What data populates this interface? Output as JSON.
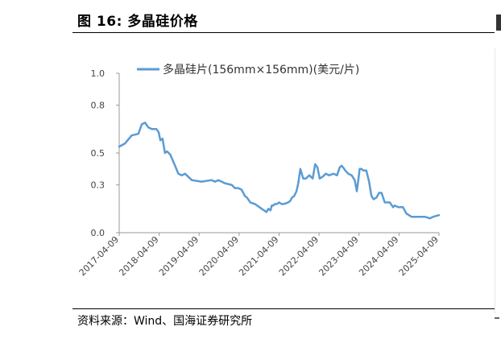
{
  "figure": {
    "title": "图 16:  多晶硅价格",
    "source": "资料来源：Wind、国海证券研究所"
  },
  "chart_data": {
    "type": "line",
    "title": "",
    "xlabel": "",
    "ylabel": "",
    "legend_position": "top",
    "ylim": [
      0,
      1.0
    ],
    "y_ticks": [
      0.0,
      0.3,
      0.5,
      0.8,
      1.0
    ],
    "y_tick_labels": [
      "0.0",
      "0.3",
      "0.5",
      "0.8",
      "1.0"
    ],
    "x_tick_labels": [
      "2017-04-09",
      "2018-04-09",
      "2019-04-09",
      "2020-04-09",
      "2021-04-09",
      "2022-04-09",
      "2023-04-09",
      "2024-04-09",
      "2025-04-09"
    ],
    "xlim": [
      "2017-04-09",
      "2025-04-09"
    ],
    "grid": false,
    "series": [
      {
        "name": "多晶硅片(156mm×156mm)(美元/片)",
        "color": "#5b9bd5",
        "x": [
          "2017-04-09",
          "2017-06-01",
          "2017-08-01",
          "2017-10-01",
          "2017-11-01",
          "2017-12-01",
          "2018-01-01",
          "2018-02-01",
          "2018-03-15",
          "2018-04-05",
          "2018-04-20",
          "2018-05-10",
          "2018-06-01",
          "2018-06-20",
          "2018-07-20",
          "2018-09-01",
          "2018-10-01",
          "2018-11-01",
          "2018-12-01",
          "2019-02-01",
          "2019-05-01",
          "2019-08-01",
          "2019-09-01",
          "2019-10-01",
          "2019-11-01",
          "2019-12-01",
          "2020-02-01",
          "2020-03-01",
          "2020-04-01",
          "2020-05-01",
          "2020-06-01",
          "2020-06-20",
          "2020-07-20",
          "2020-09-01",
          "2020-11-01",
          "2020-12-15",
          "2021-01-01",
          "2021-01-20",
          "2021-02-01",
          "2021-02-15",
          "2021-03-01",
          "2021-03-20",
          "2021-04-10",
          "2021-05-01",
          "2021-05-20",
          "2021-07-01",
          "2021-07-20",
          "2021-08-05",
          "2021-08-25",
          "2021-09-15",
          "2021-10-01",
          "2021-10-20",
          "2021-11-15",
          "2021-12-10",
          "2022-01-10",
          "2022-02-10",
          "2022-03-05",
          "2022-03-25",
          "2022-04-15",
          "2022-05-10",
          "2022-06-10",
          "2022-07-10",
          "2022-08-20",
          "2022-09-20",
          "2022-10-15",
          "2022-11-01",
          "2022-11-15",
          "2022-11-25",
          "2022-12-05",
          "2023-01-01",
          "2023-02-01",
          "2023-03-01",
          "2023-03-20",
          "2023-04-05",
          "2023-04-15",
          "2023-05-01",
          "2023-05-20",
          "2023-06-15",
          "2023-07-10",
          "2023-08-01",
          "2023-08-20",
          "2023-09-15",
          "2023-10-10",
          "2023-11-01",
          "2023-12-01",
          "2024-01-15",
          "2024-02-15",
          "2024-03-01",
          "2024-04-01",
          "2024-05-15",
          "2024-06-15",
          "2024-08-01",
          "2024-10-01",
          "2024-12-01",
          "2025-01-15",
          "2025-02-15",
          "2025-04-09"
        ],
        "y": [
          0.54,
          0.56,
          0.61,
          0.62,
          0.68,
          0.69,
          0.66,
          0.65,
          0.65,
          0.63,
          0.58,
          0.59,
          0.5,
          0.51,
          0.49,
          0.42,
          0.37,
          0.36,
          0.37,
          0.33,
          0.32,
          0.33,
          0.32,
          0.33,
          0.32,
          0.31,
          0.3,
          0.28,
          0.28,
          0.27,
          0.23,
          0.22,
          0.19,
          0.18,
          0.15,
          0.13,
          0.15,
          0.14,
          0.17,
          0.17,
          0.18,
          0.18,
          0.19,
          0.18,
          0.18,
          0.19,
          0.2,
          0.22,
          0.23,
          0.26,
          0.31,
          0.4,
          0.34,
          0.34,
          0.36,
          0.34,
          0.43,
          0.41,
          0.34,
          0.35,
          0.37,
          0.36,
          0.37,
          0.36,
          0.41,
          0.42,
          0.41,
          0.4,
          0.39,
          0.37,
          0.36,
          0.33,
          0.26,
          0.34,
          0.4,
          0.4,
          0.39,
          0.39,
          0.32,
          0.23,
          0.21,
          0.22,
          0.25,
          0.25,
          0.19,
          0.19,
          0.16,
          0.17,
          0.16,
          0.16,
          0.12,
          0.1,
          0.1,
          0.1,
          0.09,
          0.1,
          0.11
        ]
      }
    ]
  }
}
